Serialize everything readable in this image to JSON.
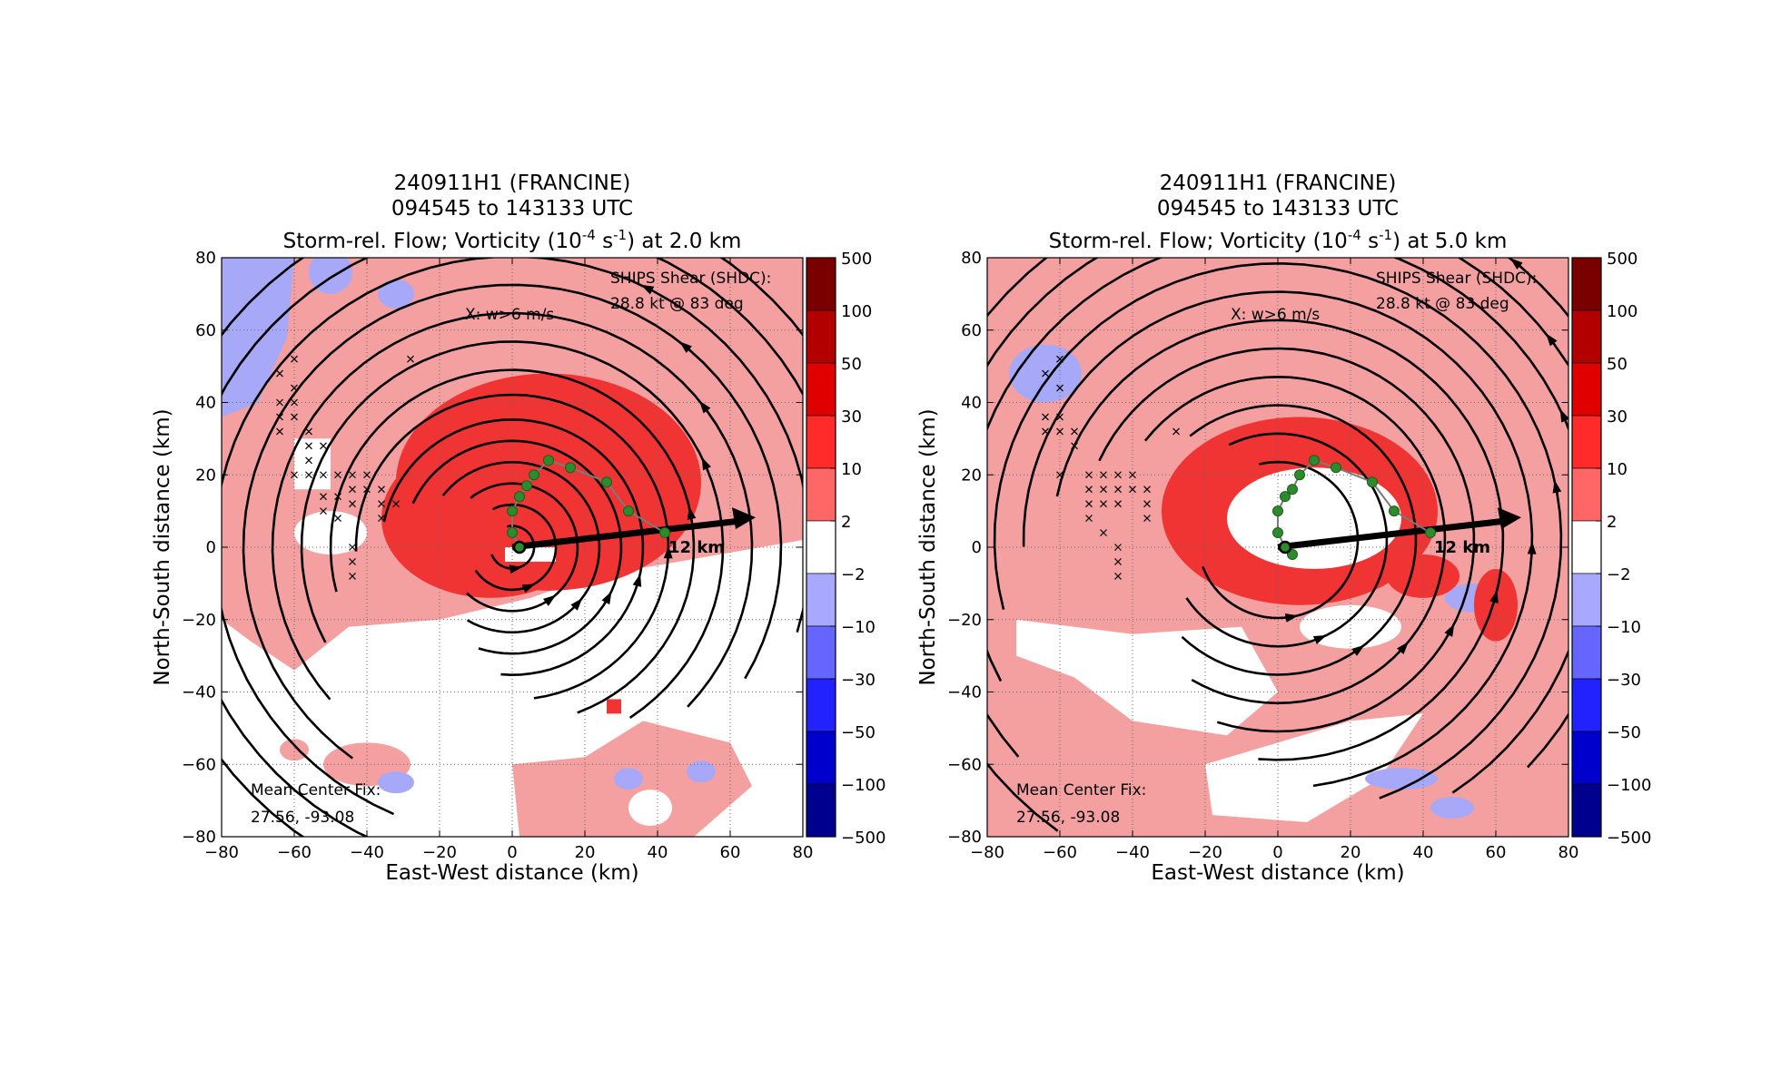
{
  "chart_data": [
    {
      "type": "heatmap",
      "title": [
        "240911H1 (FRANCINE)",
        "094545 to 143133 UTC",
        "Storm-rel. Flow; Vorticity (10",
        "-4",
        " s",
        "-1",
        ") at 2.0 km"
      ],
      "height_km": 2.0,
      "xlabel": "East-West distance (km)",
      "ylabel": "North-South distance (km)",
      "xlim": [
        -80,
        80
      ],
      "ylim": [
        -80,
        80
      ],
      "xticks": [
        -80,
        -60,
        -40,
        -20,
        0,
        20,
        40,
        60,
        80
      ],
      "yticks": [
        -80,
        -60,
        -40,
        -20,
        0,
        20,
        40,
        60,
        80
      ],
      "grid": true,
      "annotations": {
        "shear": [
          "SHIPS Shear (SHDC):",
          "28.8 kt @ 83 deg"
        ],
        "updraft_key": "X: w>6 m/s",
        "tilt_label": "12 km",
        "center_fix": [
          "Mean Center Fix:",
          "27.56, -93.08"
        ]
      },
      "shear_vector_end": [
        66,
        8
      ],
      "center_track": [
        [
          2,
          0
        ],
        [
          0,
          4
        ],
        [
          0,
          10
        ],
        [
          2,
          14
        ],
        [
          4,
          17
        ],
        [
          6,
          20
        ],
        [
          10,
          24
        ],
        [
          16,
          22
        ],
        [
          26,
          18
        ],
        [
          32,
          10
        ],
        [
          42,
          4
        ]
      ],
      "updrafts": [
        [
          -64,
          48
        ],
        [
          -64,
          40
        ],
        [
          -64,
          36
        ],
        [
          -64,
          32
        ],
        [
          -60,
          52
        ],
        [
          -60,
          44
        ],
        [
          -60,
          40
        ],
        [
          -60,
          36
        ],
        [
          -60,
          20
        ],
        [
          -56,
          32
        ],
        [
          -56,
          28
        ],
        [
          -56,
          24
        ],
        [
          -56,
          20
        ],
        [
          -52,
          28
        ],
        [
          -52,
          20
        ],
        [
          -52,
          14
        ],
        [
          -52,
          10
        ],
        [
          -48,
          20
        ],
        [
          -48,
          14
        ],
        [
          -48,
          8
        ],
        [
          -44,
          20
        ],
        [
          -44,
          16
        ],
        [
          -44,
          12
        ],
        [
          -44,
          0
        ],
        [
          -44,
          -4
        ],
        [
          -44,
          -8
        ],
        [
          -40,
          20
        ],
        [
          -40,
          16
        ],
        [
          -36,
          16
        ],
        [
          -36,
          12
        ],
        [
          -36,
          8
        ],
        [
          -32,
          12
        ],
        [
          -28,
          52
        ]
      ]
    },
    {
      "type": "heatmap",
      "title": [
        "240911H1 (FRANCINE)",
        "094545 to 143133 UTC",
        "Storm-rel. Flow; Vorticity (10",
        "-4",
        " s",
        "-1",
        ") at 5.0 km"
      ],
      "height_km": 5.0,
      "xlabel": "East-West distance (km)",
      "ylabel": "North-South distance (km)",
      "xlim": [
        -80,
        80
      ],
      "ylim": [
        -80,
        80
      ],
      "xticks": [
        -80,
        -60,
        -40,
        -20,
        0,
        20,
        40,
        60,
        80
      ],
      "yticks": [
        -80,
        -60,
        -40,
        -20,
        0,
        20,
        40,
        60,
        80
      ],
      "grid": true,
      "annotations": {
        "shear": [
          "SHIPS Shear (SHDC):",
          "28.8 kt @ 83 deg"
        ],
        "updraft_key": "X: w>6 m/s",
        "tilt_label": "12 km",
        "center_fix": [
          "Mean Center Fix:",
          "27.56, -93.08"
        ]
      },
      "shear_vector_end": [
        66,
        8
      ],
      "center_track": [
        [
          4,
          -2
        ],
        [
          2,
          0
        ],
        [
          0,
          4
        ],
        [
          0,
          10
        ],
        [
          2,
          14
        ],
        [
          4,
          16
        ],
        [
          6,
          20
        ],
        [
          10,
          24
        ],
        [
          16,
          22
        ],
        [
          26,
          18
        ],
        [
          32,
          10
        ],
        [
          42,
          4
        ]
      ],
      "updrafts": [
        [
          -64,
          48
        ],
        [
          -64,
          36
        ],
        [
          -64,
          32
        ],
        [
          -60,
          52
        ],
        [
          -60,
          44
        ],
        [
          -60,
          36
        ],
        [
          -60,
          32
        ],
        [
          -60,
          20
        ],
        [
          -56,
          32
        ],
        [
          -56,
          28
        ],
        [
          -52,
          20
        ],
        [
          -52,
          16
        ],
        [
          -52,
          12
        ],
        [
          -52,
          8
        ],
        [
          -48,
          20
        ],
        [
          -48,
          16
        ],
        [
          -48,
          12
        ],
        [
          -48,
          4
        ],
        [
          -44,
          20
        ],
        [
          -44,
          16
        ],
        [
          -44,
          12
        ],
        [
          -44,
          0
        ],
        [
          -44,
          -4
        ],
        [
          -44,
          -8
        ],
        [
          -40,
          20
        ],
        [
          -40,
          16
        ],
        [
          -36,
          16
        ],
        [
          -36,
          12
        ],
        [
          -36,
          8
        ],
        [
          -28,
          32
        ]
      ]
    }
  ],
  "colorbar": {
    "levels": [
      "500",
      "100",
      "50",
      "30",
      "10",
      "2",
      "−2",
      "−10",
      "−30",
      "−50",
      "−100",
      "−500"
    ],
    "colors": [
      "#7a0000",
      "#b20000",
      "#e00000",
      "#ff2a2a",
      "#ff6666",
      "#ffffff",
      "#a8a8ff",
      "#6666ff",
      "#2222ff",
      "#0000cc",
      "#00008f"
    ],
    "positive_fill": "#f5a0a0",
    "strong_fill": "#f03434",
    "negative_fill": "#a8a8f8"
  }
}
